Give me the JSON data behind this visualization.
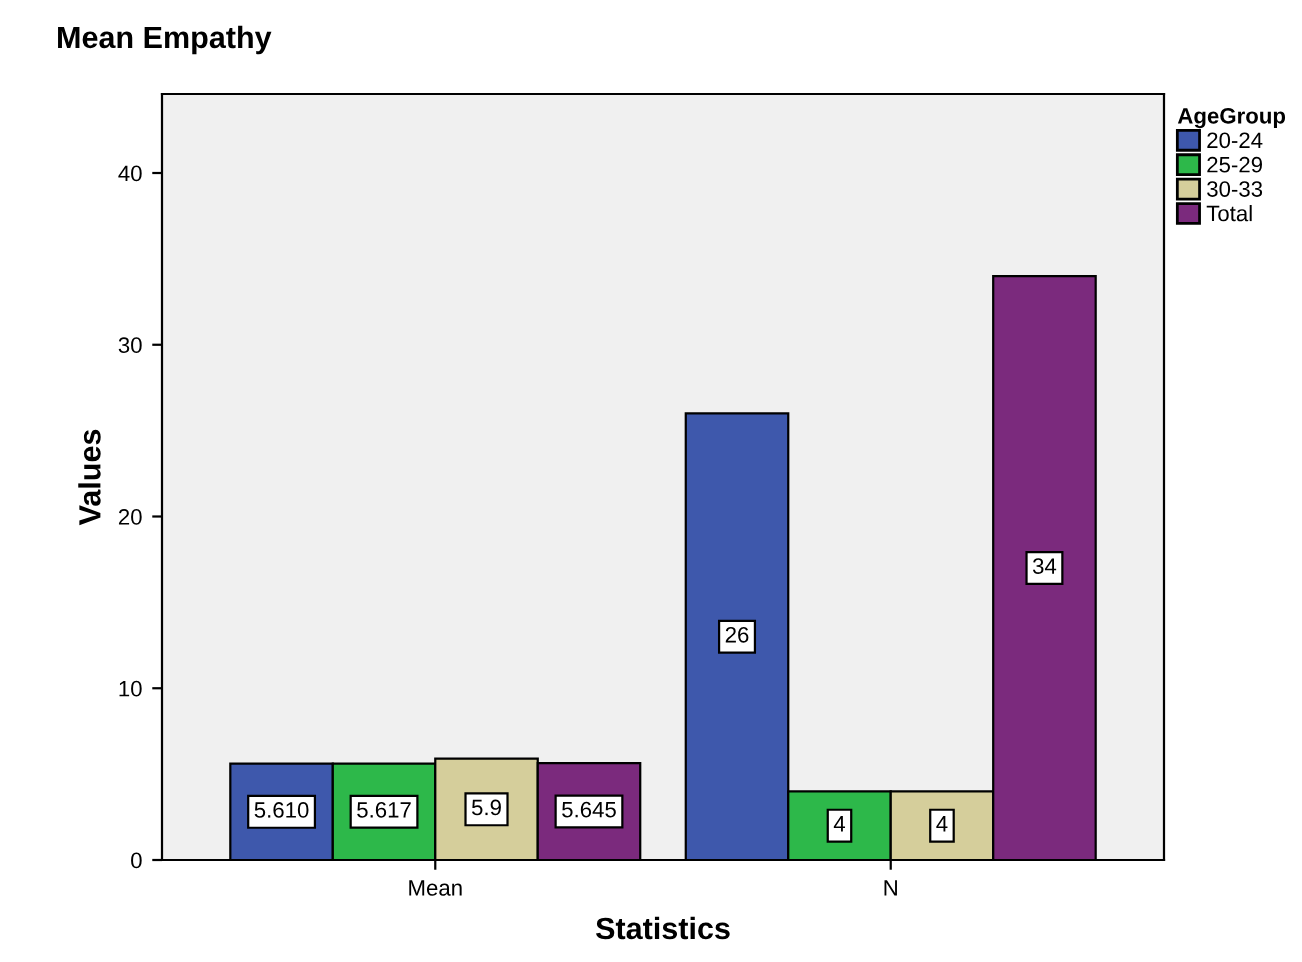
{
  "chart_data": {
    "type": "bar",
    "title": "Mean Empathy",
    "xlabel": "Statistics",
    "ylabel": "Values",
    "legend_title": "AgeGroup",
    "categories": [
      "Mean",
      "N"
    ],
    "series": [
      {
        "name": "20-24",
        "color": "#3e58ac",
        "values": [
          5.61,
          26
        ],
        "value_labels": [
          "5.610",
          "26"
        ]
      },
      {
        "name": "25-29",
        "color": "#2db84a",
        "values": [
          5.617,
          4
        ],
        "value_labels": [
          "5.617",
          "4"
        ]
      },
      {
        "name": "30-33",
        "color": "#d5ce9b",
        "values": [
          5.9,
          4
        ],
        "value_labels": [
          "5.9",
          "4"
        ]
      },
      {
        "name": "Total",
        "color": "#7b2a7d",
        "values": [
          5.645,
          34
        ],
        "value_labels": [
          "5.645",
          "34"
        ]
      }
    ],
    "ylim": [
      0,
      44.6
    ],
    "yticks": [
      0,
      10,
      20,
      30,
      40
    ],
    "grid": false,
    "legend": "top right"
  }
}
